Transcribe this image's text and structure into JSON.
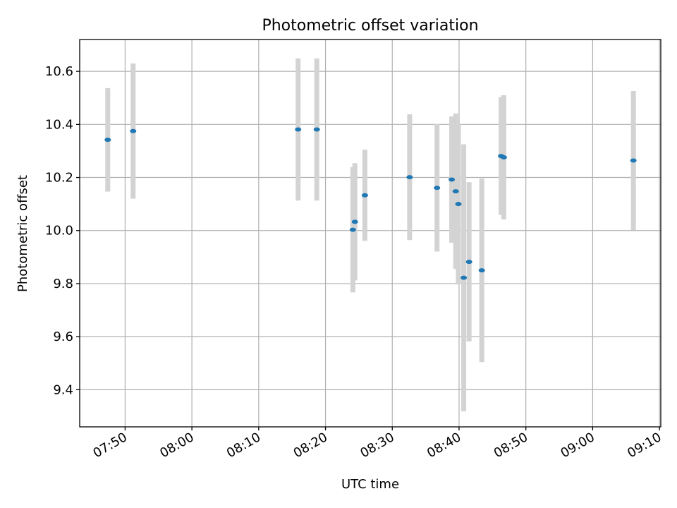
{
  "chart_data": {
    "type": "scatter",
    "title": "Photometric offset variation",
    "xlabel": "UTC time",
    "ylabel": "Photometric offset",
    "xlim": [
      "07:43:12",
      "09:10:12"
    ],
    "ylim": [
      9.26,
      10.72
    ],
    "xticks": [
      "07:50",
      "08:00",
      "08:10",
      "08:20",
      "08:30",
      "08:40",
      "08:50",
      "09:00",
      "09:10"
    ],
    "yticks": [
      9.4,
      9.6,
      9.8,
      10.0,
      10.2,
      10.4,
      10.6
    ],
    "ytick_labels": [
      "9.4",
      "9.6",
      "9.8",
      "10.0",
      "10.2",
      "10.4",
      "10.6"
    ],
    "grid": true,
    "colors": {
      "point": "#1f77b4",
      "errorbar": "#d3d3d3"
    },
    "points": [
      {
        "x": "07:47:24",
        "y": 10.342,
        "err": 0.195
      },
      {
        "x": "07:51:12",
        "y": 10.375,
        "err": 0.255
      },
      {
        "x": "08:15:54",
        "y": 10.381,
        "err": 0.268
      },
      {
        "x": "08:18:42",
        "y": 10.381,
        "err": 0.268
      },
      {
        "x": "08:24:06",
        "y": 10.003,
        "err": 0.236
      },
      {
        "x": "08:24:24",
        "y": 10.033,
        "err": 0.221
      },
      {
        "x": "08:25:54",
        "y": 10.133,
        "err": 0.172
      },
      {
        "x": "08:32:36",
        "y": 10.201,
        "err": 0.237
      },
      {
        "x": "08:36:42",
        "y": 10.161,
        "err": 0.24
      },
      {
        "x": "08:38:54",
        "y": 10.192,
        "err": 0.238
      },
      {
        "x": "08:39:30",
        "y": 10.148,
        "err": 0.293
      },
      {
        "x": "08:39:54",
        "y": 10.1,
        "err": 0.303
      },
      {
        "x": "08:40:42",
        "y": 9.822,
        "err": 0.503
      },
      {
        "x": "08:41:30",
        "y": 9.882,
        "err": 0.3
      },
      {
        "x": "08:43:24",
        "y": 9.85,
        "err": 0.346
      },
      {
        "x": "08:46:18",
        "y": 10.281,
        "err": 0.222
      },
      {
        "x": "08:46:42",
        "y": 10.276,
        "err": 0.234
      },
      {
        "x": "09:06:06",
        "y": 10.264,
        "err": 0.262
      }
    ]
  }
}
